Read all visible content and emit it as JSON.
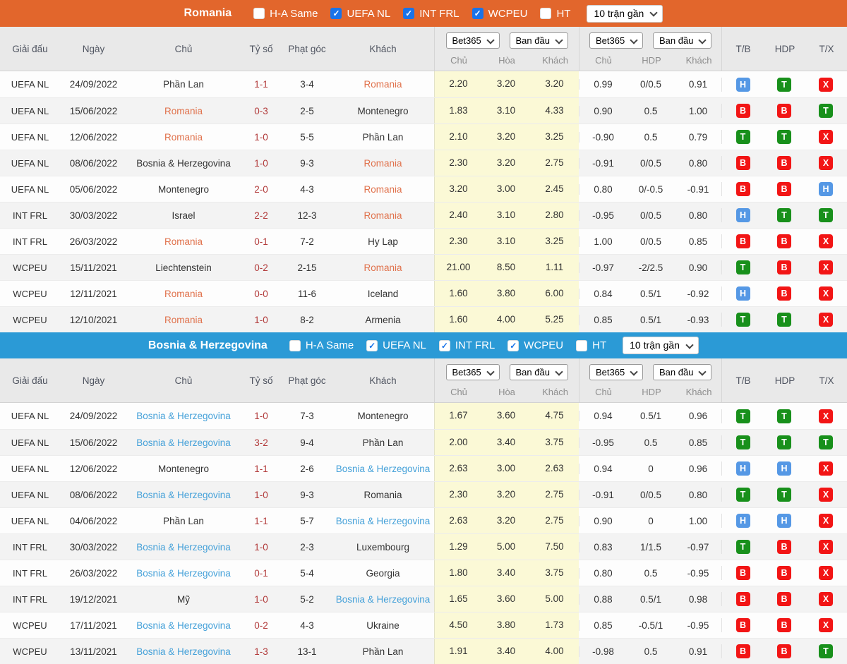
{
  "colors": {
    "orange_bar": "#E2662C",
    "blue_bar": "#2B9AD6",
    "header_bg": "#E9E9E9",
    "row_alt": "#F3F3F3",
    "yellow": "#FBF9D6",
    "score": "#B23B3B",
    "romania_hl": "#E0714B",
    "bosnia_hl": "#45A1D9",
    "badge_green": "#18901B",
    "badge_red": "#F21515",
    "badge_blue": "#5598E5",
    "check_blue": "#1A73E8"
  },
  "badge_colors": {
    "T": "badge_green",
    "B": "badge_red",
    "H": "badge_blue",
    "X": "badge_red"
  },
  "filters": {
    "checkboxes": [
      {
        "label": "H-A Same",
        "checked": false
      },
      {
        "label": "UEFA NL",
        "checked": true
      },
      {
        "label": "INT FRL",
        "checked": true
      },
      {
        "label": "WCPEU",
        "checked": true
      },
      {
        "label": "HT",
        "checked": false
      }
    ],
    "range_label": "10 trận gần"
  },
  "table_header": {
    "left": [
      "Giải đấu",
      "Ngày",
      "Chủ",
      "Tỷ số",
      "Phạt góc",
      "Khách"
    ],
    "selects": [
      "Bet365",
      "Ban đầu"
    ],
    "group1": [
      "Chủ",
      "Hòa",
      "Khách"
    ],
    "group2": [
      "Chủ",
      "HDP",
      "Khách"
    ],
    "right": [
      "T/B",
      "HDP",
      "T/X"
    ]
  },
  "sections": [
    {
      "title": "Romania",
      "accent": "orange",
      "rows": [
        {
          "league": "UEFA NL",
          "date": "24/09/2022",
          "home": "Phần Lan",
          "score": "1-1",
          "corner": "3-4",
          "away": "Romania",
          "hl": "away",
          "odds": [
            "2.20",
            "3.20",
            "3.20"
          ],
          "hcp": [
            "0.99",
            "0/0.5",
            "0.91"
          ],
          "res": [
            "H",
            "T",
            "X"
          ]
        },
        {
          "league": "UEFA NL",
          "date": "15/06/2022",
          "home": "Romania",
          "score": "0-3",
          "corner": "2-5",
          "away": "Montenegro",
          "hl": "home",
          "odds": [
            "1.83",
            "3.10",
            "4.33"
          ],
          "hcp": [
            "0.90",
            "0.5",
            "1.00"
          ],
          "res": [
            "B",
            "B",
            "T"
          ]
        },
        {
          "league": "UEFA NL",
          "date": "12/06/2022",
          "home": "Romania",
          "score": "1-0",
          "corner": "5-5",
          "away": "Phần Lan",
          "hl": "home",
          "odds": [
            "2.10",
            "3.20",
            "3.25"
          ],
          "hcp": [
            "-0.90",
            "0.5",
            "0.79"
          ],
          "res": [
            "T",
            "T",
            "X"
          ]
        },
        {
          "league": "UEFA NL",
          "date": "08/06/2022",
          "home": "Bosnia & Herzegovina",
          "score": "1-0",
          "corner": "9-3",
          "away": "Romania",
          "hl": "away",
          "odds": [
            "2.30",
            "3.20",
            "2.75"
          ],
          "hcp": [
            "-0.91",
            "0/0.5",
            "0.80"
          ],
          "res": [
            "B",
            "B",
            "X"
          ]
        },
        {
          "league": "UEFA NL",
          "date": "05/06/2022",
          "home": "Montenegro",
          "score": "2-0",
          "corner": "4-3",
          "away": "Romania",
          "hl": "away",
          "odds": [
            "3.20",
            "3.00",
            "2.45"
          ],
          "hcp": [
            "0.80",
            "0/-0.5",
            "-0.91"
          ],
          "res": [
            "B",
            "B",
            "H"
          ]
        },
        {
          "league": "INT FRL",
          "date": "30/03/2022",
          "home": "Israel",
          "score": "2-2",
          "corner": "12-3",
          "away": "Romania",
          "hl": "away",
          "odds": [
            "2.40",
            "3.10",
            "2.80"
          ],
          "hcp": [
            "-0.95",
            "0/0.5",
            "0.80"
          ],
          "res": [
            "H",
            "T",
            "T"
          ]
        },
        {
          "league": "INT FRL",
          "date": "26/03/2022",
          "home": "Romania",
          "score": "0-1",
          "corner": "7-2",
          "away": "Hy Lạp",
          "hl": "home",
          "odds": [
            "2.30",
            "3.10",
            "3.25"
          ],
          "hcp": [
            "1.00",
            "0/0.5",
            "0.85"
          ],
          "res": [
            "B",
            "B",
            "X"
          ]
        },
        {
          "league": "WCPEU",
          "date": "15/11/2021",
          "home": "Liechtenstein",
          "score": "0-2",
          "corner": "2-15",
          "away": "Romania",
          "hl": "away",
          "odds": [
            "21.00",
            "8.50",
            "1.11"
          ],
          "hcp": [
            "-0.97",
            "-2/2.5",
            "0.90"
          ],
          "res": [
            "T",
            "B",
            "X"
          ]
        },
        {
          "league": "WCPEU",
          "date": "12/11/2021",
          "home": "Romania",
          "score": "0-0",
          "corner": "11-6",
          "away": "Iceland",
          "hl": "home",
          "odds": [
            "1.60",
            "3.80",
            "6.00"
          ],
          "hcp": [
            "0.84",
            "0.5/1",
            "-0.92"
          ],
          "res": [
            "H",
            "B",
            "X"
          ]
        },
        {
          "league": "WCPEU",
          "date": "12/10/2021",
          "home": "Romania",
          "score": "1-0",
          "corner": "8-2",
          "away": "Armenia",
          "hl": "home",
          "odds": [
            "1.60",
            "4.00",
            "5.25"
          ],
          "hcp": [
            "0.85",
            "0.5/1",
            "-0.93"
          ],
          "res": [
            "T",
            "T",
            "X"
          ]
        }
      ]
    },
    {
      "title": "Bosnia & Herzegovina",
      "accent": "blue",
      "rows": [
        {
          "league": "UEFA NL",
          "date": "24/09/2022",
          "home": "Bosnia & Herzegovina",
          "score": "1-0",
          "corner": "7-3",
          "away": "Montenegro",
          "hl": "home",
          "odds": [
            "1.67",
            "3.60",
            "4.75"
          ],
          "hcp": [
            "0.94",
            "0.5/1",
            "0.96"
          ],
          "res": [
            "T",
            "T",
            "X"
          ]
        },
        {
          "league": "UEFA NL",
          "date": "15/06/2022",
          "home": "Bosnia & Herzegovina",
          "score": "3-2",
          "corner": "9-4",
          "away": "Phần Lan",
          "hl": "home",
          "odds": [
            "2.00",
            "3.40",
            "3.75"
          ],
          "hcp": [
            "-0.95",
            "0.5",
            "0.85"
          ],
          "res": [
            "T",
            "T",
            "T"
          ]
        },
        {
          "league": "UEFA NL",
          "date": "12/06/2022",
          "home": "Montenegro",
          "score": "1-1",
          "corner": "2-6",
          "away": "Bosnia & Herzegovina",
          "hl": "away",
          "odds": [
            "2.63",
            "3.00",
            "2.63"
          ],
          "hcp": [
            "0.94",
            "0",
            "0.96"
          ],
          "res": [
            "H",
            "H",
            "X"
          ]
        },
        {
          "league": "UEFA NL",
          "date": "08/06/2022",
          "home": "Bosnia & Herzegovina",
          "score": "1-0",
          "corner": "9-3",
          "away": "Romania",
          "hl": "home",
          "odds": [
            "2.30",
            "3.20",
            "2.75"
          ],
          "hcp": [
            "-0.91",
            "0/0.5",
            "0.80"
          ],
          "res": [
            "T",
            "T",
            "X"
          ]
        },
        {
          "league": "UEFA NL",
          "date": "04/06/2022",
          "home": "Phần Lan",
          "score": "1-1",
          "corner": "5-7",
          "away": "Bosnia & Herzegovina",
          "hl": "away",
          "odds": [
            "2.63",
            "3.20",
            "2.75"
          ],
          "hcp": [
            "0.90",
            "0",
            "1.00"
          ],
          "res": [
            "H",
            "H",
            "X"
          ]
        },
        {
          "league": "INT FRL",
          "date": "30/03/2022",
          "home": "Bosnia & Herzegovina",
          "score": "1-0",
          "corner": "2-3",
          "away": "Luxembourg",
          "hl": "home",
          "odds": [
            "1.29",
            "5.00",
            "7.50"
          ],
          "hcp": [
            "0.83",
            "1/1.5",
            "-0.97"
          ],
          "res": [
            "T",
            "B",
            "X"
          ]
        },
        {
          "league": "INT FRL",
          "date": "26/03/2022",
          "home": "Bosnia & Herzegovina",
          "score": "0-1",
          "corner": "5-4",
          "away": "Georgia",
          "hl": "home",
          "odds": [
            "1.80",
            "3.40",
            "3.75"
          ],
          "hcp": [
            "0.80",
            "0.5",
            "-0.95"
          ],
          "res": [
            "B",
            "B",
            "X"
          ]
        },
        {
          "league": "INT FRL",
          "date": "19/12/2021",
          "home": "Mỹ",
          "score": "1-0",
          "corner": "5-2",
          "away": "Bosnia & Herzegovina",
          "hl": "away",
          "odds": [
            "1.65",
            "3.60",
            "5.00"
          ],
          "hcp": [
            "0.88",
            "0.5/1",
            "0.98"
          ],
          "res": [
            "B",
            "B",
            "X"
          ]
        },
        {
          "league": "WCPEU",
          "date": "17/11/2021",
          "home": "Bosnia & Herzegovina",
          "score": "0-2",
          "corner": "4-3",
          "away": "Ukraine",
          "hl": "home",
          "odds": [
            "4.50",
            "3.80",
            "1.73"
          ],
          "hcp": [
            "0.85",
            "-0.5/1",
            "-0.95"
          ],
          "res": [
            "B",
            "B",
            "X"
          ]
        },
        {
          "league": "WCPEU",
          "date": "13/11/2021",
          "home": "Bosnia & Herzegovina",
          "score": "1-3",
          "corner": "13-1",
          "away": "Phần Lan",
          "hl": "home",
          "odds": [
            "1.91",
            "3.40",
            "4.00"
          ],
          "hcp": [
            "-0.98",
            "0.5",
            "0.91"
          ],
          "res": [
            "B",
            "B",
            "T"
          ]
        }
      ]
    }
  ]
}
